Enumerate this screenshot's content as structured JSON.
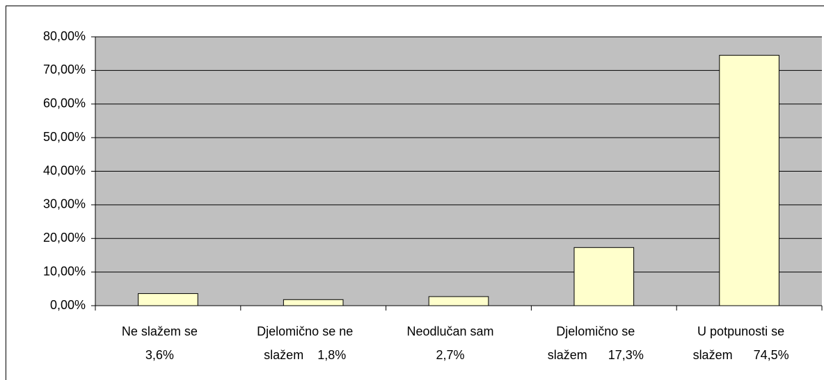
{
  "chart_data": {
    "type": "bar",
    "categories": [
      [
        "Ne slažem se",
        "3,6%"
      ],
      [
        "Djelomično se ne",
        "slažem    1,8%"
      ],
      [
        "Neodlučan sam",
        "2,7%"
      ],
      [
        "Djelomično se",
        "slažem      17,3%"
      ],
      [
        "U potpunosti se",
        "slažem      74,5%"
      ]
    ],
    "values": [
      3.6,
      1.8,
      2.7,
      17.3,
      74.5
    ],
    "color": "#ffffcc",
    "plot_background": "#c0c0c0",
    "ylim": [
      0,
      80
    ],
    "yticks": [
      {
        "value": 0,
        "label": "0,00%"
      },
      {
        "value": 10,
        "label": "10,00%"
      },
      {
        "value": 20,
        "label": "20,00%"
      },
      {
        "value": 30,
        "label": "30,00%"
      },
      {
        "value": 40,
        "label": "40,00%"
      },
      {
        "value": 50,
        "label": "50,00%"
      },
      {
        "value": 60,
        "label": "60,00%"
      },
      {
        "value": 70,
        "label": "70,00%"
      },
      {
        "value": 80,
        "label": "80,00%"
      }
    ],
    "grid": true
  }
}
